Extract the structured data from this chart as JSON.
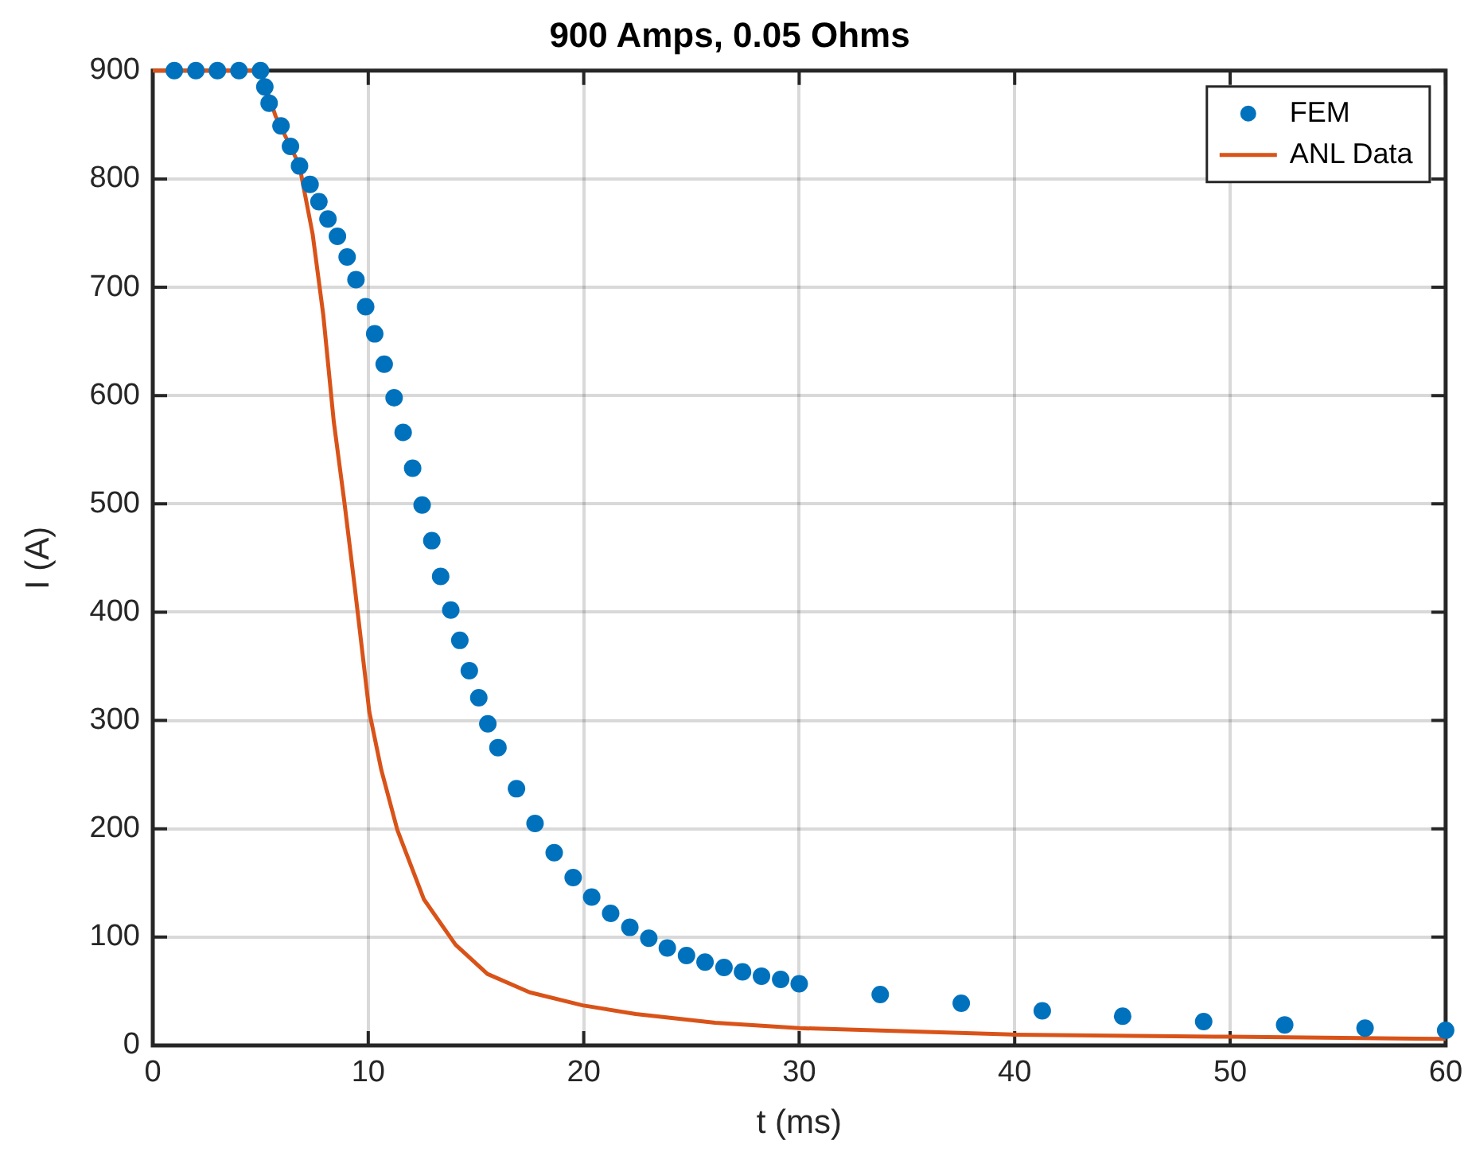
{
  "chart_data": {
    "type": "line",
    "title": "900 Amps, 0.05 Ohms",
    "xlabel": "t (ms)",
    "ylabel": "I (A)",
    "xlim": [
      0,
      60
    ],
    "xticks": [
      0,
      10,
      20,
      30,
      40,
      50,
      60
    ],
    "ylim": [
      0,
      900
    ],
    "yticks": [
      0,
      100,
      200,
      300,
      400,
      500,
      600,
      700,
      800,
      900
    ],
    "grid": true,
    "legend": "top right",
    "series": [
      {
        "name": "FEM",
        "type": "scatter",
        "marker": "circle",
        "color": "#0072bd",
        "x": [
          1,
          2,
          3,
          4,
          5,
          5.2,
          5.4,
          5.95,
          6.39,
          6.81,
          7.3,
          7.71,
          8.13,
          8.57,
          9.02,
          9.43,
          9.88,
          10.3,
          10.74,
          11.2,
          11.62,
          12.06,
          12.5,
          12.95,
          13.36,
          13.83,
          14.25,
          14.69,
          15.13,
          15.55,
          16.02,
          16.88,
          17.74,
          18.63,
          19.51,
          20.37,
          21.25,
          22.14,
          23.02,
          23.88,
          24.77,
          25.63,
          26.51,
          27.37,
          28.25,
          29.14,
          30,
          33.76,
          37.52,
          41.28,
          45.01,
          48.77,
          52.53,
          56.26,
          60
        ],
        "values": [
          900,
          900,
          900,
          900,
          900,
          885,
          870,
          849,
          830,
          812,
          795,
          779,
          763,
          747,
          728,
          707,
          682,
          657,
          629,
          598,
          566,
          533,
          499,
          466,
          433,
          402,
          374,
          346,
          321,
          297,
          275,
          237,
          205,
          178,
          155,
          137,
          122,
          109,
          99,
          90,
          83,
          77,
          72,
          68,
          64,
          61,
          57,
          47,
          39,
          32,
          27,
          22,
          19,
          16,
          14
        ]
      },
      {
        "name": "ANL Data",
        "color": "#d95319",
        "x": [
          0,
          5,
          5.7,
          6.8,
          7.42,
          7.91,
          8.4,
          8.89,
          9.38,
          10.05,
          10.61,
          11.35,
          12.58,
          14.05,
          15.53,
          17.49,
          19.95,
          22.41,
          26.1,
          30,
          40,
          50,
          60
        ],
        "values": [
          900,
          900,
          858,
          813,
          749,
          675,
          576,
          502,
          422,
          308,
          254,
          199,
          135,
          93,
          66,
          49,
          37,
          29,
          21,
          16,
          10,
          8,
          6
        ]
      }
    ]
  }
}
